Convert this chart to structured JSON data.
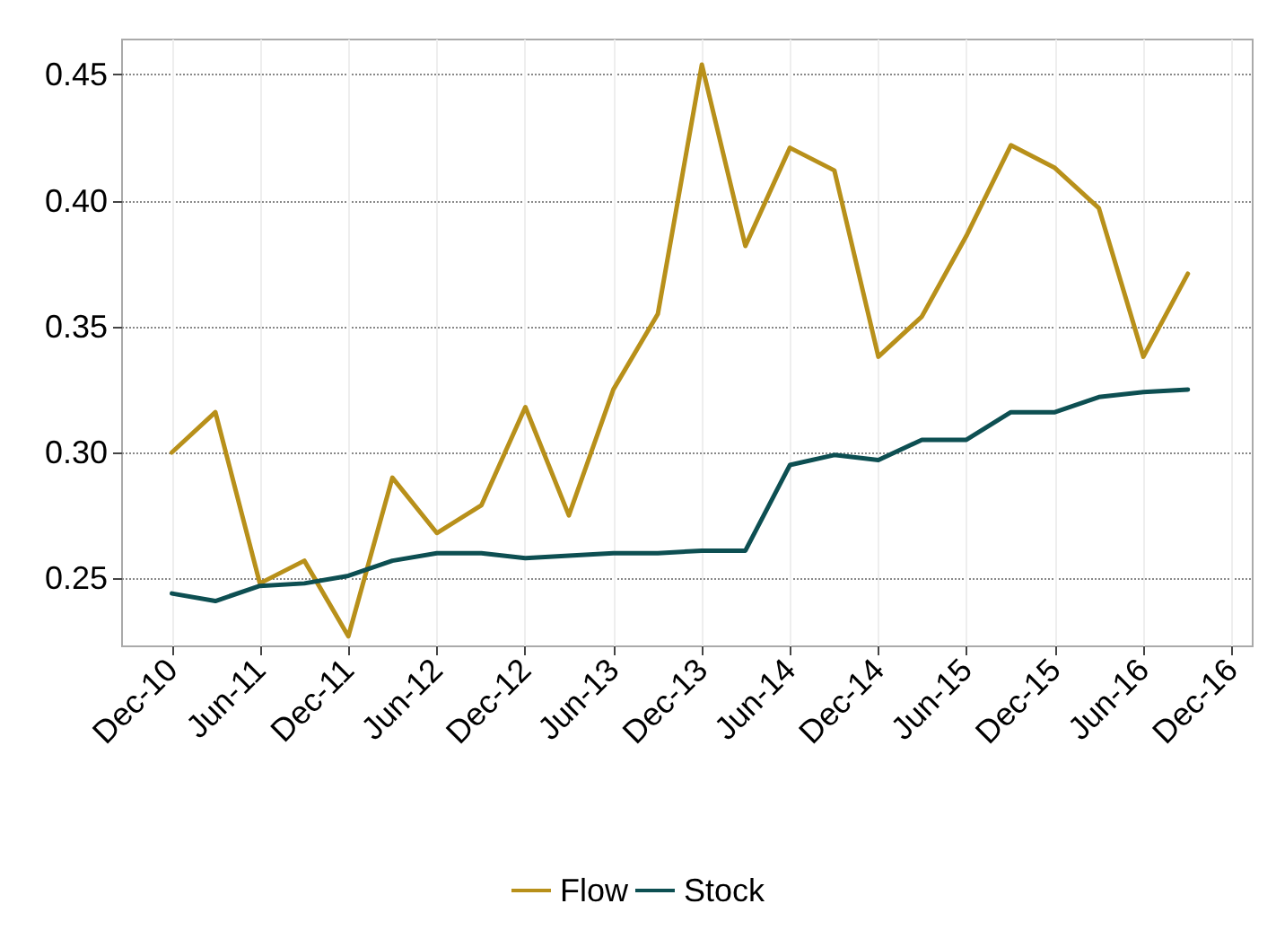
{
  "chart_data": {
    "type": "line",
    "x": [
      "2010-12",
      "2011-03",
      "2011-06",
      "2011-09",
      "2011-12",
      "2012-03",
      "2012-06",
      "2012-09",
      "2012-12",
      "2013-03",
      "2013-06",
      "2013-09",
      "2013-12",
      "2014-03",
      "2014-06",
      "2014-09",
      "2014-12",
      "2015-03",
      "2015-06",
      "2015-09",
      "2015-12",
      "2016-03",
      "2016-06",
      "2016-09"
    ],
    "series": [
      {
        "name": "Flow",
        "color": "#b8901a",
        "values": [
          0.3,
          0.316,
          0.248,
          0.257,
          0.227,
          0.29,
          0.268,
          0.279,
          0.318,
          0.275,
          0.325,
          0.355,
          0.454,
          0.382,
          0.421,
          0.412,
          0.338,
          0.354,
          0.386,
          0.422,
          0.413,
          0.397,
          0.338,
          0.371
        ]
      },
      {
        "name": "Stock",
        "color": "#0d4f52",
        "values": [
          0.244,
          0.241,
          0.247,
          0.248,
          0.251,
          0.257,
          0.26,
          0.26,
          0.258,
          0.259,
          0.26,
          0.26,
          0.261,
          0.261,
          0.295,
          0.299,
          0.297,
          0.305,
          0.305,
          0.316,
          0.316,
          0.322,
          0.324,
          0.325
        ]
      }
    ],
    "xlim": [
      "2010-08-20",
      "2017-01-13"
    ],
    "xticks": [
      {
        "value": "2010-12",
        "label": "Dec-10"
      },
      {
        "value": "2011-06",
        "label": "Jun-11"
      },
      {
        "value": "2011-12",
        "label": "Dec-11"
      },
      {
        "value": "2012-06",
        "label": "Jun-12"
      },
      {
        "value": "2012-12",
        "label": "Dec-12"
      },
      {
        "value": "2013-06",
        "label": "Jun-13"
      },
      {
        "value": "2013-12",
        "label": "Dec-13"
      },
      {
        "value": "2014-06",
        "label": "Jun-14"
      },
      {
        "value": "2014-12",
        "label": "Dec-14"
      },
      {
        "value": "2015-06",
        "label": "Jun-15"
      },
      {
        "value": "2015-12",
        "label": "Dec-15"
      },
      {
        "value": "2016-06",
        "label": "Jun-16"
      },
      {
        "value": "2016-12",
        "label": "Dec-16"
      }
    ],
    "ylim": [
      0.223,
      0.464
    ],
    "yticks": [
      {
        "value": 0.25,
        "label": "0.25"
      },
      {
        "value": 0.3,
        "label": "0.30"
      },
      {
        "value": 0.35,
        "label": "0.35"
      },
      {
        "value": 0.4,
        "label": "0.40"
      },
      {
        "value": 0.45,
        "label": "0.45"
      }
    ],
    "grid": true,
    "legend": "bottom",
    "marker": "none",
    "line_style": "solid"
  }
}
